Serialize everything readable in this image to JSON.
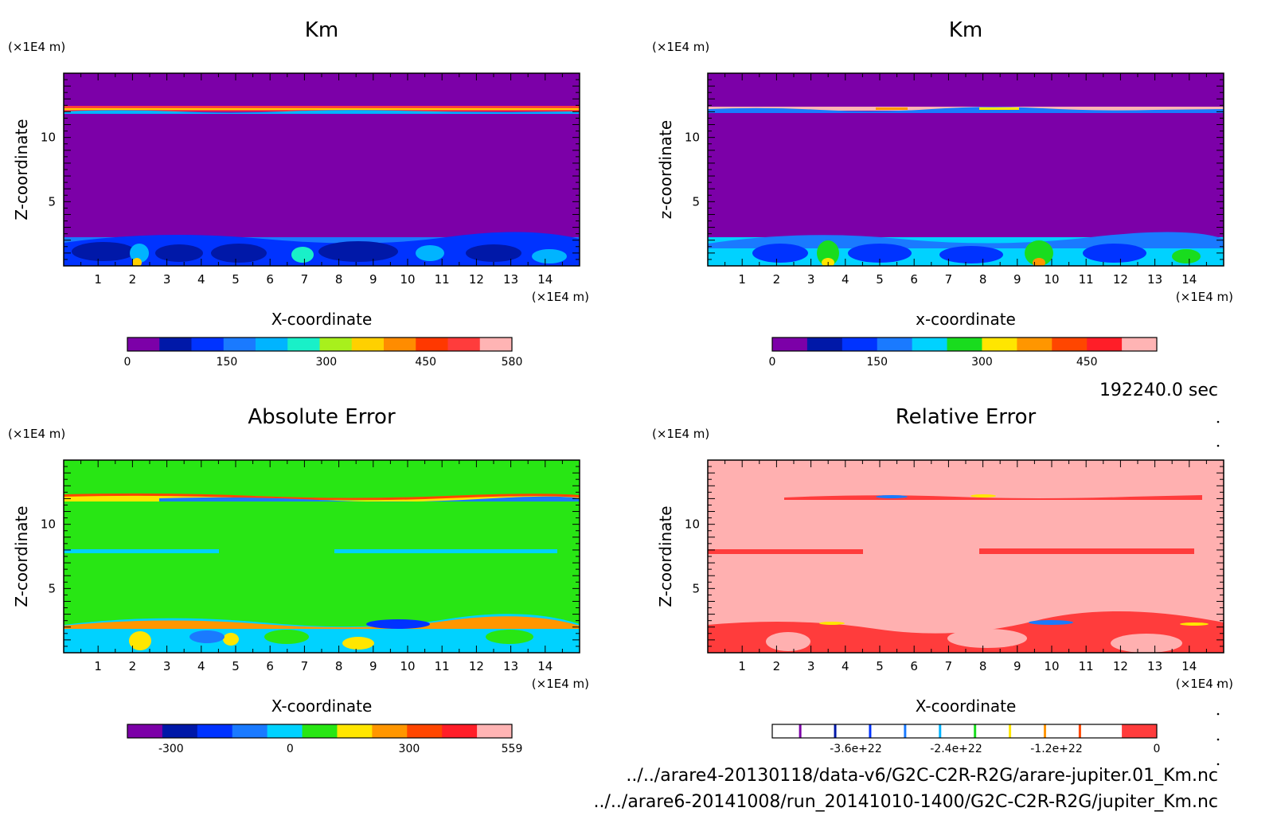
{
  "footer": {
    "time": "192240.0 sec",
    "file1": "../../arare4-20130118/data-v6/G2C-C2R-R2G/arare-jupiter.01_Km.nc",
    "file2": "../../arare6-20141008/run_20141010-1400/G2C-C2R-R2G/jupiter_Km.nc"
  },
  "chart_data": [
    {
      "type": "heatmap",
      "title": "Km",
      "xlabel": "X-coordinate",
      "ylabel": "Z-coordinate",
      "x_unit": "(×1E4 m)",
      "y_unit": "(×1E4 m)",
      "xlim": [
        0,
        15
      ],
      "ylim": [
        0,
        15
      ],
      "x_ticks": [
        1,
        2,
        3,
        4,
        5,
        6,
        7,
        8,
        9,
        10,
        11,
        12,
        13,
        14
      ],
      "y_ticks": [
        5,
        10
      ],
      "background_color": "#7c00a8",
      "colorbar": {
        "colors": [
          "#7c00a8",
          "#0018a8",
          "#0033ff",
          "#1a7aff",
          "#00b4ff",
          "#19f0c8",
          "#a8f01c",
          "#ffd000",
          "#ff8c00",
          "#ff3800",
          "#ff3c3c",
          "#ffb4b4"
        ],
        "tick_labels": [
          "0",
          "150",
          "300",
          "450",
          "580"
        ],
        "tick_values": [
          0,
          150,
          300,
          450,
          580
        ],
        "range": [
          0,
          580
        ]
      }
    },
    {
      "type": "heatmap",
      "title": "Km",
      "xlabel": "x-coordinate",
      "ylabel": "z-coordinate",
      "x_unit": "(×1E4 m)",
      "y_unit": "(×1E4 m)",
      "xlim": [
        0,
        15
      ],
      "ylim": [
        0,
        15
      ],
      "x_ticks": [
        1,
        2,
        3,
        4,
        5,
        6,
        7,
        8,
        9,
        10,
        11,
        12,
        13,
        14
      ],
      "y_ticks": [
        5,
        10
      ],
      "background_color": "#7c00a8",
      "colorbar": {
        "colors": [
          "#7c00a8",
          "#0018a8",
          "#0033ff",
          "#1a7aff",
          "#00d2ff",
          "#19dc1e",
          "#ffe600",
          "#ff9600",
          "#ff4600",
          "#ff1e28",
          "#ffb4b4"
        ],
        "tick_labels": [
          "0",
          "150",
          "300",
          "450"
        ],
        "tick_values": [
          0,
          150,
          300,
          450
        ],
        "range": [
          0,
          550
        ]
      }
    },
    {
      "type": "heatmap",
      "title": "Absolute Error",
      "xlabel": "X-coordinate",
      "ylabel": "Z-coordinate",
      "x_unit": "(×1E4 m)",
      "y_unit": "(×1E4 m)",
      "xlim": [
        0,
        15
      ],
      "ylim": [
        0,
        15
      ],
      "x_ticks": [
        1,
        2,
        3,
        4,
        5,
        6,
        7,
        8,
        9,
        10,
        11,
        12,
        13,
        14
      ],
      "y_ticks": [
        5,
        10
      ],
      "background_color": "#28e614",
      "colorbar": {
        "colors": [
          "#7c00a8",
          "#0018a8",
          "#0033ff",
          "#1a7aff",
          "#00d2ff",
          "#28e614",
          "#ffe600",
          "#ff9600",
          "#ff4600",
          "#ff1e28",
          "#ffb4b4"
        ],
        "tick_labels": [
          "-300",
          "0",
          "300",
          "559"
        ],
        "tick_values": [
          -300,
          0,
          300,
          559
        ],
        "range": [
          -410,
          559
        ]
      }
    },
    {
      "type": "heatmap",
      "title": "Relative Error",
      "xlabel": "X-coordinate",
      "ylabel": "Z-coordinate",
      "x_unit": "(×1E4 m)",
      "y_unit": "(×1E4 m)",
      "xlim": [
        0,
        15
      ],
      "ylim": [
        0,
        15
      ],
      "x_ticks": [
        1,
        2,
        3,
        4,
        5,
        6,
        7,
        8,
        9,
        10,
        11,
        12,
        13,
        14
      ],
      "y_ticks": [
        5,
        10
      ],
      "background_color": "#ffb0b0",
      "colorbar": {
        "colors": [
          "#ffffff",
          "#ffffff",
          "#ffffff",
          "#ffffff",
          "#ffffff",
          "#ffffff",
          "#ffffff",
          "#ffffff",
          "#ffffff",
          "#ffffff",
          "#ff3c3c"
        ],
        "tick_labels": [
          "-3.6e+22",
          "-2.4e+22",
          "-1.2e+22",
          "0"
        ],
        "tick_values": [
          -3.6e+22,
          -2.4e+22,
          -1.2e+22,
          0
        ],
        "range": [
          -4.6e+22,
          0
        ]
      }
    }
  ]
}
